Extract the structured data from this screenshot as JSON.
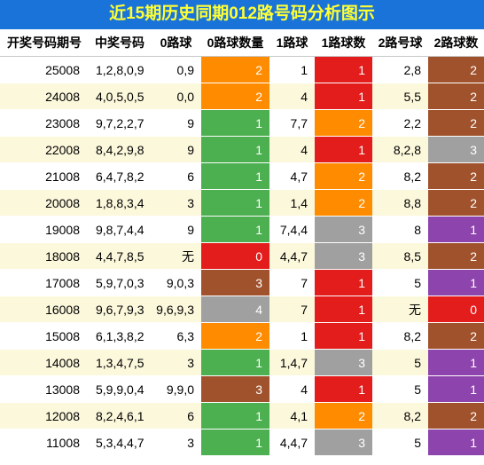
{
  "title": "近15期历史同期012路号码分析图示",
  "headers": [
    "开奖号码期号",
    "中奖号码",
    "0路球",
    "0路球数量",
    "1路球",
    "1路球数",
    "2路号球",
    "2路球数"
  ],
  "colors": {
    "title_bg": "#1a73d9",
    "title_text": "#ffff33",
    "alt_row_bg": "#fcf8dc",
    "green": "#4caf50",
    "orange": "#ff8c00",
    "brown": "#a0522d",
    "gray": "#a0a0a0",
    "red": "#e31c1c",
    "purple": "#8e44ad"
  },
  "rows": [
    {
      "period": "25008",
      "nums": "1,2,8,0,9",
      "g0": "0,9",
      "c0": "2",
      "c0c": "orange",
      "g1": "1",
      "c1": "1",
      "c1c": "red",
      "g2": "2,8",
      "c2": "2",
      "c2c": "brown"
    },
    {
      "period": "24008",
      "nums": "4,0,5,0,5",
      "g0": "0,0",
      "c0": "2",
      "c0c": "orange",
      "g1": "4",
      "c1": "1",
      "c1c": "red",
      "g2": "5,5",
      "c2": "2",
      "c2c": "brown"
    },
    {
      "period": "23008",
      "nums": "9,7,2,2,7",
      "g0": "9",
      "c0": "1",
      "c0c": "green",
      "g1": "7,7",
      "c1": "2",
      "c1c": "orange",
      "g2": "2,2",
      "c2": "2",
      "c2c": "brown"
    },
    {
      "period": "22008",
      "nums": "8,4,2,9,8",
      "g0": "9",
      "c0": "1",
      "c0c": "green",
      "g1": "4",
      "c1": "1",
      "c1c": "red",
      "g2": "8,2,8",
      "c2": "3",
      "c2c": "gray"
    },
    {
      "period": "21008",
      "nums": "6,4,7,8,2",
      "g0": "6",
      "c0": "1",
      "c0c": "green",
      "g1": "4,7",
      "c1": "2",
      "c1c": "orange",
      "g2": "8,2",
      "c2": "2",
      "c2c": "brown"
    },
    {
      "period": "20008",
      "nums": "1,8,8,3,4",
      "g0": "3",
      "c0": "1",
      "c0c": "green",
      "g1": "1,4",
      "c1": "2",
      "c1c": "orange",
      "g2": "8,8",
      "c2": "2",
      "c2c": "brown"
    },
    {
      "period": "19008",
      "nums": "9,8,7,4,4",
      "g0": "9",
      "c0": "1",
      "c0c": "green",
      "g1": "7,4,4",
      "c1": "3",
      "c1c": "gray",
      "g2": "8",
      "c2": "1",
      "c2c": "purple"
    },
    {
      "period": "18008",
      "nums": "4,4,7,8,5",
      "g0": "无",
      "c0": "0",
      "c0c": "red",
      "g1": "4,4,7",
      "c1": "3",
      "c1c": "gray",
      "g2": "8,5",
      "c2": "2",
      "c2c": "brown"
    },
    {
      "period": "17008",
      "nums": "5,9,7,0,3",
      "g0": "9,0,3",
      "c0": "3",
      "c0c": "brown",
      "g1": "7",
      "c1": "1",
      "c1c": "red",
      "g2": "5",
      "c2": "1",
      "c2c": "purple"
    },
    {
      "period": "16008",
      "nums": "9,6,7,9,3",
      "g0": "9,6,9,3",
      "c0": "4",
      "c0c": "gray",
      "g1": "7",
      "c1": "1",
      "c1c": "red",
      "g2": "无",
      "c2": "0",
      "c2c": "red"
    },
    {
      "period": "15008",
      "nums": "6,1,3,8,2",
      "g0": "6,3",
      "c0": "2",
      "c0c": "orange",
      "g1": "1",
      "c1": "1",
      "c1c": "red",
      "g2": "8,2",
      "c2": "2",
      "c2c": "brown"
    },
    {
      "period": "14008",
      "nums": "1,3,4,7,5",
      "g0": "3",
      "c0": "1",
      "c0c": "green",
      "g1": "1,4,7",
      "c1": "3",
      "c1c": "gray",
      "g2": "5",
      "c2": "1",
      "c2c": "purple"
    },
    {
      "period": "13008",
      "nums": "5,9,9,0,4",
      "g0": "9,9,0",
      "c0": "3",
      "c0c": "brown",
      "g1": "4",
      "c1": "1",
      "c1c": "red",
      "g2": "5",
      "c2": "1",
      "c2c": "purple"
    },
    {
      "period": "12008",
      "nums": "8,2,4,6,1",
      "g0": "6",
      "c0": "1",
      "c0c": "green",
      "g1": "4,1",
      "c1": "2",
      "c1c": "orange",
      "g2": "8,2",
      "c2": "2",
      "c2c": "brown"
    },
    {
      "period": "11008",
      "nums": "5,3,4,4,7",
      "g0": "3",
      "c0": "1",
      "c0c": "green",
      "g1": "4,4,7",
      "c1": "3",
      "c1c": "gray",
      "g2": "5",
      "c2": "1",
      "c2c": "purple"
    }
  ]
}
